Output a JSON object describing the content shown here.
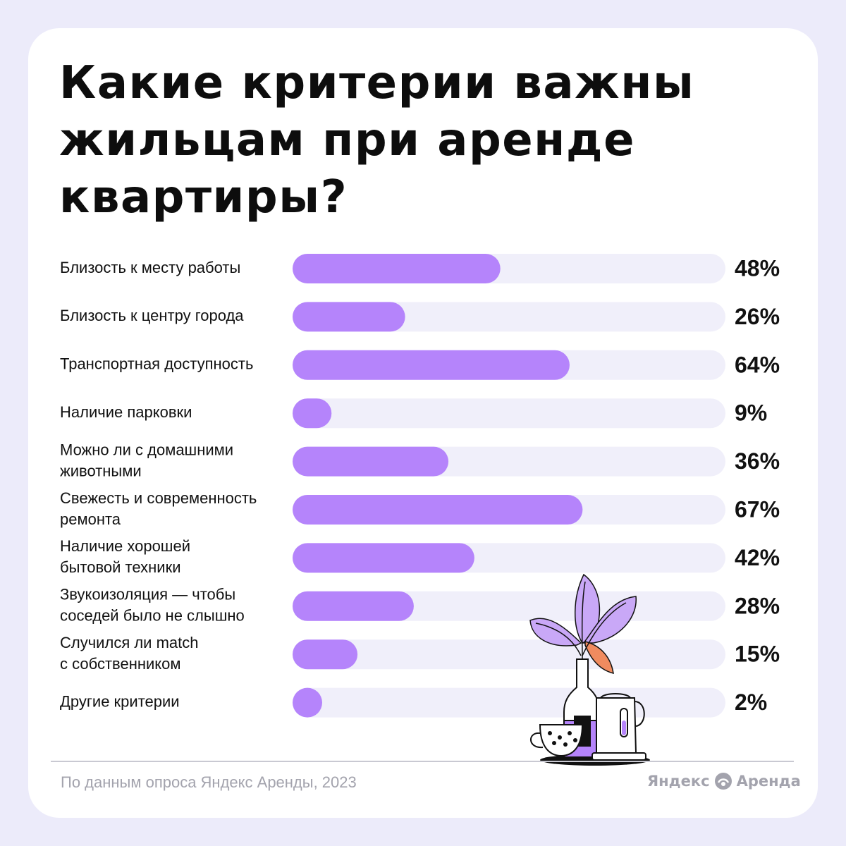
{
  "title_lines": [
    "Какие критерии важны",
    "жильцам при аренде",
    "квартиры?"
  ],
  "chart_data": {
    "type": "bar",
    "orientation": "horizontal",
    "title": "Какие критерии важны жильцам при аренде квартиры?",
    "unit": "%",
    "xlim": [
      0,
      100
    ],
    "categories": [
      [
        "Близость к месту работы"
      ],
      [
        "Близость к центру города"
      ],
      [
        "Транспортная доступность"
      ],
      [
        "Наличие парковки"
      ],
      [
        "Можно ли с домашними",
        "животными"
      ],
      [
        "Свежесть и современность",
        "ремонта"
      ],
      [
        "Наличие хорошей",
        "бытовой техники"
      ],
      [
        "Звукоизоляция — чтобы",
        "соседей было не слышно"
      ],
      [
        "Случился ли match",
        "с собственником"
      ],
      [
        "Другие критерии"
      ]
    ],
    "values": [
      48,
      26,
      64,
      9,
      36,
      67,
      42,
      28,
      15,
      2
    ],
    "value_labels": [
      "48%",
      "26%",
      "64%",
      "9%",
      "36%",
      "67%",
      "42%",
      "28%",
      "15%",
      "2%"
    ],
    "colors": {
      "bar": "#b584fb",
      "track": "#f0effa"
    }
  },
  "footer": {
    "source": "По данным опроса Яндекс Аренды, 2023",
    "brand_left": "Яндекс",
    "brand_right": "Аренда",
    "brand_icon": "yandex-arenda-logo-icon"
  }
}
